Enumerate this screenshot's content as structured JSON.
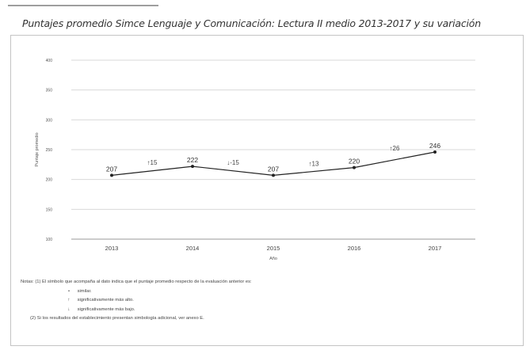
{
  "title": "Puntajes promedio Simce Lenguaje y Comunicación: Lectura II medio 2013-2017 y su variación",
  "chart_data": {
    "type": "line",
    "title": "",
    "xlabel": "Año",
    "ylabel": "Puntaje promedio",
    "categories": [
      "2013",
      "2014",
      "2015",
      "2016",
      "2017"
    ],
    "series": [
      {
        "name": "",
        "values": [
          207,
          222,
          207,
          220,
          246
        ],
        "labels": [
          "207",
          "222",
          "207",
          "220",
          "246"
        ]
      }
    ],
    "variations": [
      {
        "between": [
          "2013",
          "2014"
        ],
        "label": "↑15"
      },
      {
        "between": [
          "2014",
          "2015"
        ],
        "label": "↓-15"
      },
      {
        "between": [
          "2015",
          "2016"
        ],
        "label": "↑13"
      },
      {
        "between": [
          "2016",
          "2017"
        ],
        "label": "↑26"
      }
    ],
    "ylim": [
      100,
      400
    ],
    "yticks": [
      100,
      150,
      200,
      250,
      300,
      350,
      400
    ],
    "grid": true,
    "line_color": "#222222",
    "grid_color": "#d9d9d9"
  },
  "notes": {
    "heading": "Notas: (1) El símbolo que acompaña al dato indica que el puntaje promedio respecto de la evaluación anterior es:",
    "symbols": [
      {
        "symbol": "•",
        "text": "similar."
      },
      {
        "symbol": "↑",
        "text": "significativamente más alto."
      },
      {
        "symbol": "↓",
        "text": "significativamente más bajo."
      }
    ],
    "note2": "(2) Si los resultados del establecimiento presentan simbología adicional, ver anexo E."
  }
}
